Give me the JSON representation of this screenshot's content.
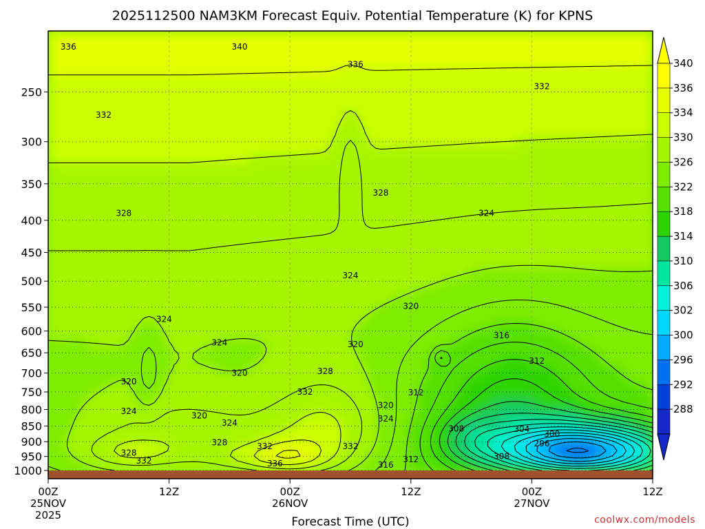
{
  "chart_data": {
    "type": "heatmap",
    "title": "2025112500 NAM3KM Forecast Equiv. Potential Temperature (K) for KPNS",
    "xlabel": "Forecast Time (UTC)",
    "ylabel": "",
    "x_ticks": [
      {
        "hour": 0,
        "label": "00Z",
        "date": "25NOV",
        "year": "2025"
      },
      {
        "hour": 12,
        "label": "12Z",
        "date": "",
        "year": ""
      },
      {
        "hour": 24,
        "label": "00Z",
        "date": "26NOV",
        "year": ""
      },
      {
        "hour": 36,
        "label": "12Z",
        "date": "",
        "year": ""
      },
      {
        "hour": 48,
        "label": "00Z",
        "date": "27NOV",
        "year": ""
      },
      {
        "hour": 60,
        "label": "12Z",
        "date": "",
        "year": ""
      }
    ],
    "xlim": [
      0,
      60
    ],
    "y_ticks": [
      250,
      300,
      350,
      400,
      450,
      500,
      550,
      600,
      650,
      700,
      750,
      800,
      850,
      900,
      950,
      1000
    ],
    "ylim": [
      200,
      1000
    ],
    "y_scale": "log",
    "colorbar": {
      "label_values": [
        340,
        336,
        334,
        330,
        326,
        322,
        318,
        314,
        310,
        306,
        302,
        300,
        296,
        292,
        288
      ],
      "colors": [
        "#ffff00",
        "#e6ff00",
        "#ccff00",
        "#a6f500",
        "#7fec00",
        "#55e000",
        "#2ed400",
        "#14c864",
        "#00e6a0",
        "#00f0dc",
        "#00d8ff",
        "#00aaff",
        "#0070f0",
        "#0040d8",
        "#1428c8"
      ]
    },
    "contour_labels": [
      {
        "text": "336",
        "t": 2.0,
        "p": 212
      },
      {
        "text": "340",
        "t": 19.0,
        "p": 212
      },
      {
        "text": "336",
        "t": 30.5,
        "p": 226
      },
      {
        "text": "332",
        "t": 5.5,
        "p": 272
      },
      {
        "text": "332",
        "t": 49.0,
        "p": 245
      },
      {
        "text": "328",
        "t": 33.0,
        "p": 362
      },
      {
        "text": "328",
        "t": 7.5,
        "p": 390
      },
      {
        "text": "324",
        "t": 43.5,
        "p": 390
      },
      {
        "text": "324",
        "t": 30.0,
        "p": 490
      },
      {
        "text": "324",
        "t": 11.5,
        "p": 575
      },
      {
        "text": "324",
        "t": 17.0,
        "p": 626
      },
      {
        "text": "320",
        "t": 36.0,
        "p": 548
      },
      {
        "text": "320",
        "t": 30.5,
        "p": 630
      },
      {
        "text": "316",
        "t": 45.0,
        "p": 610
      },
      {
        "text": "312",
        "t": 48.5,
        "p": 670
      },
      {
        "text": "320",
        "t": 19.0,
        "p": 700
      },
      {
        "text": "328",
        "t": 27.5,
        "p": 695
      },
      {
        "text": "332",
        "t": 25.5,
        "p": 750
      },
      {
        "text": "312",
        "t": 36.5,
        "p": 752
      },
      {
        "text": "320",
        "t": 8.0,
        "p": 722
      },
      {
        "text": "324",
        "t": 8.0,
        "p": 805
      },
      {
        "text": "320",
        "t": 15.0,
        "p": 818
      },
      {
        "text": "320",
        "t": 33.5,
        "p": 788
      },
      {
        "text": "324",
        "t": 18.0,
        "p": 840
      },
      {
        "text": "324",
        "t": 33.5,
        "p": 828
      },
      {
        "text": "308",
        "t": 40.5,
        "p": 858
      },
      {
        "text": "304",
        "t": 47.0,
        "p": 860
      },
      {
        "text": "300",
        "t": 50.0,
        "p": 875
      },
      {
        "text": "328",
        "t": 17.0,
        "p": 903
      },
      {
        "text": "332",
        "t": 21.5,
        "p": 915
      },
      {
        "text": "296",
        "t": 49.0,
        "p": 906
      },
      {
        "text": "328",
        "t": 8.0,
        "p": 938
      },
      {
        "text": "332",
        "t": 30.0,
        "p": 915
      },
      {
        "text": "332",
        "t": 9.5,
        "p": 965
      },
      {
        "text": "308",
        "t": 45.0,
        "p": 950
      },
      {
        "text": "312",
        "t": 36.0,
        "p": 960
      },
      {
        "text": "336",
        "t": 22.5,
        "p": 975
      },
      {
        "text": "316",
        "t": 33.5,
        "p": 980
      }
    ]
  },
  "credit": "coolwx.com/models"
}
